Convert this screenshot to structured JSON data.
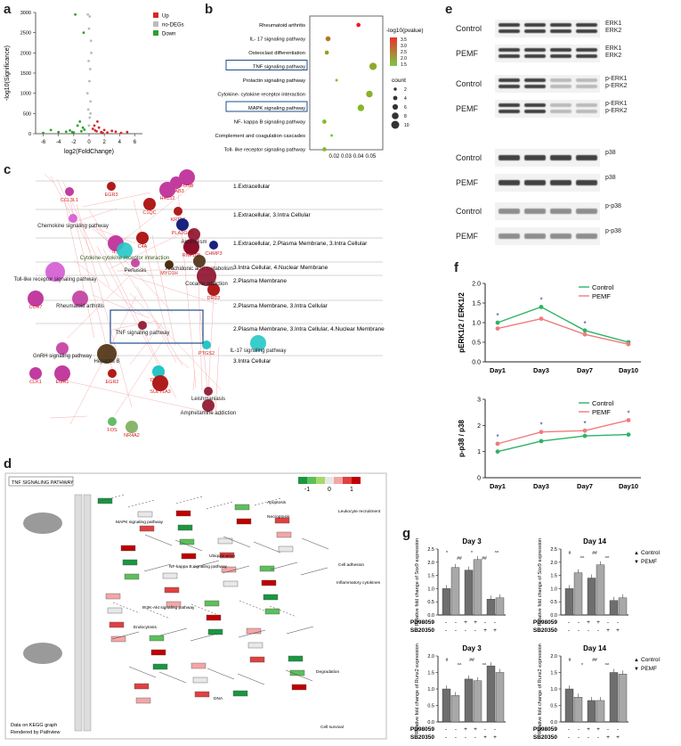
{
  "panels": {
    "a": "a",
    "b": "b",
    "c": "c",
    "d": "d",
    "e": "e",
    "f": "f",
    "g": "g"
  },
  "panel_a": {
    "xlabel": "log2(FoldChange)",
    "ylabel": "-log10(Significance)",
    "xticks": [
      "-6",
      "-4",
      "-2",
      "0",
      "2",
      "4",
      "6"
    ],
    "yticks": [
      "0",
      "500",
      "1000",
      "1500",
      "2000",
      "2500",
      "3000"
    ],
    "legend": [
      {
        "label": "Up",
        "color": "#d62728"
      },
      {
        "label": "no-DEGs",
        "color": "#bbbbbb"
      },
      {
        "label": "Down",
        "color": "#2ca02c"
      }
    ]
  },
  "chart_data": [
    {
      "type": "scatter",
      "title": "",
      "xlabel": "log2(FoldChange)",
      "ylabel": "-log10(Significance)",
      "xlim": [
        -7,
        7
      ],
      "ylim": [
        0,
        3000
      ],
      "series": [
        {
          "name": "Up",
          "x": [
            0.5,
            0.8,
            1.0,
            1.3,
            1.6,
            2.0,
            2.4,
            3.0,
            3.5,
            4.2,
            5.0,
            0.7,
            1.1,
            1.8
          ],
          "y": [
            120,
            80,
            60,
            150,
            40,
            90,
            30,
            70,
            50,
            20,
            40,
            200,
            300,
            20
          ]
        },
        {
          "name": "no-DEGs",
          "x": [
            0,
            0.1,
            -0.1,
            0.2,
            -0.2,
            0.05,
            0.15,
            -0.05,
            0.3,
            0.25,
            0,
            0.1,
            -0.15,
            0.2
          ],
          "y": [
            200,
            400,
            600,
            800,
            1000,
            1300,
            1600,
            1800,
            2000,
            2300,
            2600,
            2900,
            2950,
            500
          ]
        },
        {
          "name": "Down",
          "x": [
            -0.6,
            -1.0,
            -1.5,
            -2.0,
            -2.5,
            -3.0,
            -4.0,
            -5.0,
            -6.0,
            -1.2,
            -0.8,
            -2.2,
            -1.8,
            -0.7
          ],
          "y": [
            100,
            60,
            200,
            30,
            80,
            50,
            40,
            90,
            20,
            300,
            150,
            40,
            2950,
            2500
          ]
        }
      ]
    },
    {
      "type": "scatter",
      "title": "",
      "xlabel": "",
      "ylabel": "",
      "xlim": [
        0,
        0.06
      ],
      "legend_title": "-log10(pvalue)",
      "colorbar_ticks": [
        "3.5",
        "3.0",
        "2.5",
        "2.0",
        "1.5"
      ],
      "size_title": "count",
      "size_ticks": [
        "2",
        "4",
        "6",
        "8",
        "10"
      ],
      "xticks": [
        "0.02",
        "0.03",
        "0.04",
        "0.05"
      ],
      "categories": [
        "Rheumatoid arthritis",
        "IL- 17 signaling pathway",
        "Osteoclast differentiation",
        "TNF signaling pathway",
        "Prolactin signaling pathway",
        "Cytokine- cytokine receptor interaction",
        "MAPK signaling pathway",
        "NF- kappa B signaling pathway",
        "Complement and coagulation cascades",
        "Toll- like receptor signaling pathway"
      ],
      "x": [
        0.04,
        0.015,
        0.014,
        0.052,
        0.022,
        0.049,
        0.042,
        0.012,
        0.018,
        0.012
      ],
      "neglog10p": [
        3.8,
        2.5,
        2.0,
        1.8,
        1.5,
        1.7,
        1.6,
        1.6,
        1.4,
        1.6
      ],
      "count": [
        3,
        4,
        3,
        7,
        1,
        6,
        6,
        3,
        1,
        3
      ],
      "highlighted": [
        "TNF signaling pathway",
        "MAPK signaling pathway"
      ]
    },
    {
      "type": "line",
      "title": "",
      "xlabel": "",
      "ylabel": "pERK1/2 / ERK1/2",
      "categories": [
        "Day1",
        "Day3",
        "Day7",
        "Day10"
      ],
      "ylim": [
        0,
        2.0
      ],
      "yticks": [
        "0.0",
        "0.5",
        "1.0",
        "1.5",
        "2.0"
      ],
      "series": [
        {
          "name": "Control",
          "values": [
            1.0,
            1.4,
            0.8,
            0.5
          ],
          "color": "#2db366"
        },
        {
          "name": "PEMF",
          "values": [
            0.85,
            1.1,
            0.7,
            0.45
          ],
          "color": "#f07b7b"
        }
      ],
      "significance": [
        "*",
        "*",
        "*",
        ""
      ]
    },
    {
      "type": "line",
      "title": "",
      "xlabel": "",
      "ylabel": "p-p38 / p38",
      "categories": [
        "Day1",
        "Day3",
        "Day7",
        "Day10"
      ],
      "ylim": [
        0,
        3
      ],
      "yticks": [
        "0",
        "1",
        "2",
        "3"
      ],
      "series": [
        {
          "name": "Control",
          "values": [
            1.0,
            1.4,
            1.6,
            1.65
          ],
          "color": "#2db366"
        },
        {
          "name": "PEMF",
          "values": [
            1.3,
            1.75,
            1.8,
            2.2
          ],
          "color": "#f07b7b"
        }
      ],
      "significance": [
        "*",
        "*",
        "*",
        "*"
      ]
    },
    {
      "type": "bar",
      "title": "Day 3",
      "ylabel": "Relative fold change of Sox9 expression",
      "ylim": [
        0,
        2.5
      ],
      "yticks": [
        "0.0",
        "0.5",
        "1.0",
        "1.5",
        "2.0",
        "2.5"
      ],
      "groups": [
        "-/-",
        "PD98059",
        "SB20350"
      ],
      "series": [
        {
          "name": "Control",
          "values": [
            1.0,
            1.7,
            0.6
          ]
        },
        {
          "name": "PEMF",
          "values": [
            1.8,
            2.1,
            0.65
          ]
        }
      ],
      "annotations": [
        "*",
        "##",
        "*",
        "##",
        "^^"
      ]
    },
    {
      "type": "bar",
      "title": "Day 14",
      "ylabel": "Relative fold change of Sox9 expression",
      "ylim": [
        0,
        2.5
      ],
      "yticks": [
        "0.0",
        "0.5",
        "1.0",
        "1.5",
        "2.0",
        "2.5"
      ],
      "groups": [
        "-/-",
        "PD98059",
        "SB20350"
      ],
      "series": [
        {
          "name": "Control",
          "values": [
            1.0,
            1.4,
            0.55
          ]
        },
        {
          "name": "PEMF",
          "values": [
            1.6,
            1.9,
            0.65
          ]
        }
      ],
      "annotations": [
        "#",
        "^^",
        "##",
        "^^"
      ]
    },
    {
      "type": "bar",
      "title": "Day 3",
      "ylabel": "Relative fold change of Runx2 expression",
      "ylim": [
        0,
        2.0
      ],
      "yticks": [
        "0.0",
        "0.5",
        "1.0",
        "1.5",
        "2.0"
      ],
      "groups": [
        "-/-",
        "PD98059",
        "SB20350"
      ],
      "series": [
        {
          "name": "Control",
          "values": [
            1.0,
            1.3,
            1.7
          ]
        },
        {
          "name": "PEMF",
          "values": [
            0.8,
            1.25,
            1.5
          ]
        }
      ],
      "annotations": [
        "#",
        "^^",
        "##",
        "^^"
      ]
    },
    {
      "type": "bar",
      "title": "Day 14",
      "ylabel": "Relative fold change of Runx2 expression",
      "ylim": [
        0,
        2.0
      ],
      "yticks": [
        "0.0",
        "0.5",
        "1.0",
        "1.5",
        "2.0"
      ],
      "groups": [
        "-/-",
        "PD98059",
        "SB20350"
      ],
      "series": [
        {
          "name": "Control",
          "values": [
            1.0,
            0.65,
            1.5
          ]
        },
        {
          "name": "PEMF",
          "values": [
            0.75,
            0.65,
            1.45
          ]
        }
      ],
      "annotations": [
        "#",
        "*",
        "##",
        "^^"
      ]
    }
  ],
  "panel_c": {
    "layers": [
      "1.Extracellular",
      "1.Extracellular, 3.Intra Cellular",
      "1.Extracellular, 2.Plasma Membrane, 3.Intra Cellular",
      "3.Intra Cellular, 4.Nuclear Membrane",
      "2.Plasma Membrane",
      "2.Plasma Membrane, 3.Intra Cellular",
      "2.Plasma Membrane, 3.Intra Cellular, 4.Nuclear Membrane",
      "3.Intra Cellular"
    ],
    "genes": [
      "EGR3",
      "H2AB3",
      "FOSB",
      "CCL3L1",
      "C1QC",
      "H4C12",
      "KRT15",
      "PLA2G4B",
      "RNF168",
      "CHMP3",
      "C4A",
      "IL6",
      "MYO1H",
      "DRD2",
      "CCR7",
      "PTGS2",
      "CLK1",
      "EGR1",
      "EGR2",
      "DUSP1",
      "SULT1A3",
      "FOS",
      "NR4A2"
    ],
    "pathways": [
      "Chemokine signaling pathway",
      "Alcoholism",
      "Cytokine-cytokine receptor interaction",
      "Toll-like receptor signaling pathway",
      "Pertussis",
      "Arachidonic acid metabolism",
      "Rheumatoid arthritis",
      "Cocaine addiction",
      "TNF signaling pathway",
      "GnRH signaling pathway",
      "IL-17 signaling pathway",
      "Hepatitis B",
      "Leishmaniasis",
      "Amphetamine addiction"
    ]
  },
  "panel_d": {
    "title": "TNF SIGNALING PATHWAY",
    "colorbar_ticks": [
      "-1",
      "0",
      "1"
    ],
    "nodes": [
      "MAPK signaling pathway",
      "NF-kappa B signaling pathway",
      "PI3K-Akt signaling pathway",
      "Apoptosis",
      "Necroptosis",
      "Cell survival",
      "DNA",
      "Degradation",
      "Leukocyte recruitment",
      "Inflammatory cytokines",
      "Cell adhesion",
      "Ubiquitination",
      "Endocytosis"
    ],
    "footer": "Data on KEGG graph\nRendered by Pathview"
  },
  "panel_e": {
    "blots": [
      {
        "row1": "Control",
        "row2": "PEMF",
        "label1": "ERK1\nERK2",
        "label2": "ERK1\nERK2"
      },
      {
        "row1": "Control",
        "row2": "PEMF",
        "label1": "p-ERK1\np-ERK2",
        "label2": "p-ERK1\np-ERK2"
      },
      {
        "row1": "Control",
        "row2": "PEMF",
        "label1": "p38",
        "label2": "p38"
      },
      {
        "row1": "Control",
        "row2": "PEMF",
        "label1": "p-p38",
        "label2": "p-p38"
      }
    ]
  },
  "panel_g": {
    "legend": [
      "Control",
      "PEMF"
    ],
    "row_labels": [
      "PD98059",
      "SB20350"
    ],
    "signs_row1": [
      "-",
      "-",
      "+",
      "+",
      "-",
      "-"
    ],
    "signs_row2": [
      "-",
      "-",
      "-",
      "-",
      "+",
      "+"
    ]
  }
}
